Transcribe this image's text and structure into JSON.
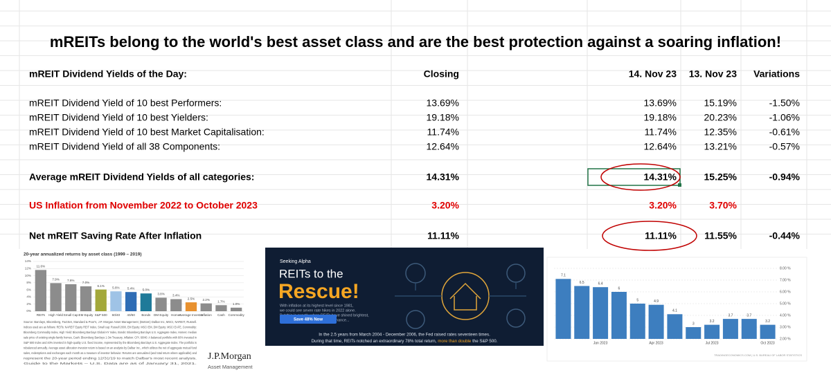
{
  "title": "mREITs belong to the world's best asset class and are the best protection against a soaring inflation!",
  "table": {
    "header": {
      "label": "mREIT Dividend Yields of the Day:",
      "closing": "Closing",
      "nov14": "14. Nov 23",
      "nov13": "13. Nov 23",
      "variation": "Variations"
    },
    "rows": [
      {
        "label": "mREIT Dividend Yield of 10 best Performers:",
        "closing": "13.69%",
        "nov14": "13.69%",
        "nov13": "15.19%",
        "variation": "-1.50%"
      },
      {
        "label": "mREIT Dividend Yield of 10 best Yielders:",
        "closing": "19.18%",
        "nov14": "19.18%",
        "nov13": "20.23%",
        "variation": "-1.06%"
      },
      {
        "label": "mREIT Dividend Yield of 10 best Market Capitalisation:",
        "closing": "11.74%",
        "nov14": "11.74%",
        "nov13": "12.35%",
        "variation": "-0.61%"
      },
      {
        "label": "mREIT Dividend Yield of all 38 Components:",
        "closing": "12.64%",
        "nov14": "12.64%",
        "nov13": "13.21%",
        "variation": "-0.57%"
      },
      {
        "label": "Average mREIT Dividend Yields of all categories:",
        "closing": "14.31%",
        "nov14": "14.31%",
        "nov13": "15.25%",
        "variation": "-0.94%"
      },
      {
        "label": "US Inflation from November 2022 to October 2023",
        "closing": "3.20%",
        "nov14": "3.20%",
        "nov13": "3.70%"
      },
      {
        "label": "Net mREIT Saving Rate After Inflation",
        "closing": "11.11%",
        "nov14": "11.11%",
        "nov13": "11.55%",
        "variation": "-0.44%"
      }
    ]
  },
  "jpmorgan_chart": {
    "type": "bar",
    "title": "20-year annualized returns by asset class (1999 – 2019)",
    "categories": [
      "REITs",
      "High Yield",
      "Small Cap",
      "EM Equity",
      "S&P 500",
      "60/40",
      "40/60",
      "Bonds",
      "DM Equity",
      "Homes",
      "Average Investor",
      "Inflation",
      "Cash",
      "Commodity"
    ],
    "values": [
      11.6,
      7.9,
      7.6,
      7.0,
      6.1,
      5.6,
      5.4,
      5.0,
      3.8,
      3.4,
      2.5,
      2.2,
      1.7,
      1.0
    ],
    "value_labels": [
      "11.6%",
      "7.9%",
      "7.6%",
      "7.0%",
      "6.1%",
      "5.6%",
      "5.4%",
      "5.0%",
      "3.8%",
      "3.4%",
      "2.5%",
      "2.2%",
      "1.7%",
      "1.0%"
    ],
    "colors": [
      "#8c8c8c",
      "#8c8c8c",
      "#8c8c8c",
      "#8c8c8c",
      "#a3a83a",
      "#9fc3e6",
      "#2f6db5",
      "#1f7a99",
      "#8c8c8c",
      "#8c8c8c",
      "#e8912f",
      "#8c8c8c",
      "#8c8c8c",
      "#8c8c8c"
    ],
    "ylim": [
      0,
      14
    ],
    "yticks": [
      {
        "value": 0,
        "label": "0%"
      },
      {
        "value": 2,
        "label": "2%"
      },
      {
        "value": 4,
        "label": "4%"
      },
      {
        "value": 6,
        "label": "6%"
      },
      {
        "value": 8,
        "label": "8%"
      },
      {
        "value": 10,
        "label": "10%"
      },
      {
        "value": 12,
        "label": "12%"
      },
      {
        "value": 14,
        "label": "14%"
      }
    ],
    "footnote": [
      "Source: Barclays, Bloomberg, FactSet, Standard & Poor's, J.P. Morgan Asset Management; (Bottom) Dalbar Inc, MSCI, NAREIT, Russell.",
      "Indices used are as follows: REITs: NAREIT Equity REIT Index, Small cap: Russell 2000, EM Equity: MSCI EM, DM Equity: MSCI EAFE, Commodity:",
      "Bloomberg Commodity Index, High Yield: Bloomberg Barclays Global HY Index, Bonds: Bloomberg Barclays U.S. Aggregate Index, Homes: median",
      "sale price of existing single-family homes, Cash: Bloomberg Barclays 1-3m Treasury, Inflation: CPI. 60/40: A balanced portfolio with 60% invested in",
      "S&P 500 Index and 40% invested in high-quality U.S. fixed income, represented by the Bloomberg Barclays U.S. Aggregate Index. The portfolio is",
      "rebalanced annually. Average asset allocation investor return is based on an analysis by Dalbar Inc., which utilizes the net of aggregate mutual fund",
      "sales, redemptions and exchanges each month as a measure of investor behavior. Returns are annualized (and total return where applicable) and",
      "represent the 20-year period ending 12/31/19 to match Dalbar's most recent analysis.",
      "Guide to the Markets – U.S. Data are as of January 31, 2021."
    ],
    "brand": "J.P.Morgan",
    "brand_sub": "Asset Management"
  },
  "banner": {
    "brand": "Seeking Alpha",
    "headline": "REITs to the",
    "headline_big": "Rescue!",
    "body": [
      "With inflation at its highest level since 1981,",
      "we could see seven rate hikes in 2022 alone.",
      "But this is exactly when REITs have shined brightest,",
      "with a proven record of outperformance..."
    ],
    "button": "Save 48% Now",
    "footer_line1": "In the 2.5 years from March 2004 - December 2006, the Fed raised rates seventeen times.",
    "footer_line2": [
      "During that time, REITs notched an extraordinary 78% total return, ",
      "more than double",
      " the S&P 500."
    ]
  },
  "inflation_chart": {
    "type": "bar",
    "categories": [
      null,
      null,
      "Jan 2023",
      null,
      null,
      "Apr 2023",
      null,
      null,
      "Jul 2023",
      null,
      null,
      "Oct 2023"
    ],
    "values": [
      7.1,
      6.5,
      6.4,
      6,
      5,
      4.9,
      4.1,
      3,
      3.2,
      3.7,
      3.7,
      3.2
    ],
    "color": "#3d7ebf",
    "ylim": [
      2,
      8
    ],
    "yticks": [
      {
        "value": 2,
        "label": "2.00 %"
      },
      {
        "value": 3,
        "label": "3.00 %"
      },
      {
        "value": 4,
        "label": "4.00 %"
      },
      {
        "value": 5,
        "label": "5.00 %"
      },
      {
        "value": 6,
        "label": "6.00 %"
      },
      {
        "value": 7,
        "label": "7.00 %"
      },
      {
        "value": 8,
        "label": "8.00 %"
      }
    ],
    "source": "TRADINGECONOMICS.COM | U.S. BUREAU OF LABOR STATISTICS"
  }
}
